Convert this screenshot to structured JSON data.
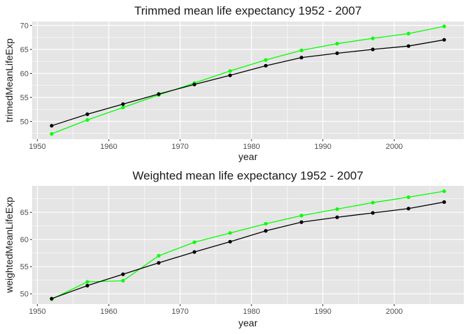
{
  "colors": {
    "panel": "#e5e5e5",
    "grid": "#ffffff",
    "series_green": "#00ff00",
    "series_black": "#000000"
  },
  "chart_data": [
    {
      "type": "line",
      "title": "Trimmed mean life expectancy 1952 - 2007",
      "xlabel": "year",
      "ylabel": "trimedMeanLifeExp",
      "xlim": [
        1949.25,
        2009.75
      ],
      "ylim": [
        46.3,
        70.8
      ],
      "xticks": [
        1950,
        1960,
        1970,
        1980,
        1990,
        2000
      ],
      "yticks": [
        50,
        55,
        60,
        65,
        70
      ],
      "grid": true,
      "x": [
        1952,
        1957,
        1962,
        1967,
        1972,
        1977,
        1982,
        1987,
        1992,
        1997,
        2002,
        2007
      ],
      "series": [
        {
          "color": "#00ff00",
          "values": [
            47.4,
            50.3,
            52.9,
            55.5,
            58.0,
            60.5,
            62.8,
            64.8,
            66.2,
            67.3,
            68.3,
            69.8
          ]
        },
        {
          "color": "#000000",
          "values": [
            49.1,
            51.5,
            53.6,
            55.7,
            57.7,
            59.6,
            61.6,
            63.3,
            64.2,
            65.0,
            65.7,
            67.0
          ]
        }
      ]
    },
    {
      "type": "line",
      "title": "Weighted mean life expectancy 1952 - 2007",
      "xlabel": "year",
      "ylabel": "weightedMeanLifeExp",
      "xlim": [
        1949.25,
        2009.75
      ],
      "ylim": [
        48.1,
        69.9
      ],
      "xticks": [
        1950,
        1960,
        1970,
        1980,
        1990,
        2000
      ],
      "yticks": [
        50,
        55,
        60,
        65
      ],
      "grid": true,
      "x": [
        1952,
        1957,
        1962,
        1967,
        1972,
        1977,
        1982,
        1987,
        1992,
        1997,
        2002,
        2007
      ],
      "series": [
        {
          "color": "#00ff00",
          "values": [
            49.0,
            52.2,
            52.4,
            57.0,
            59.5,
            61.2,
            62.9,
            64.4,
            65.6,
            66.8,
            67.8,
            68.9
          ]
        },
        {
          "color": "#000000",
          "values": [
            49.1,
            51.5,
            53.6,
            55.7,
            57.7,
            59.6,
            61.6,
            63.2,
            64.1,
            64.9,
            65.7,
            66.9
          ]
        }
      ]
    }
  ]
}
